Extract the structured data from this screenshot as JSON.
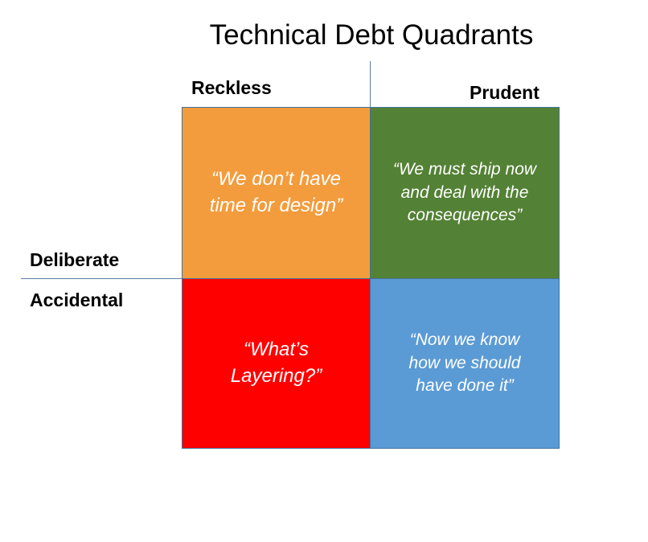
{
  "title": "Technical Debt Quadrants",
  "axes": {
    "reckless": "Reckless",
    "prudent": "Prudent",
    "deliberate": "Deliberate",
    "accidental": "Accidental"
  },
  "quadrants": {
    "reckless_deliberate": {
      "quote": "“We don’t have time for design”",
      "color": "#f39c3d"
    },
    "prudent_deliberate": {
      "quote": "“We must ship now and deal with the consequences”",
      "color": "#538135"
    },
    "reckless_accidental": {
      "quote": "“What’s Layering?”",
      "color": "#ff0000"
    },
    "prudent_accidental": {
      "quote": "“Now we know how we should have done it”",
      "color": "#5b9bd5"
    }
  }
}
